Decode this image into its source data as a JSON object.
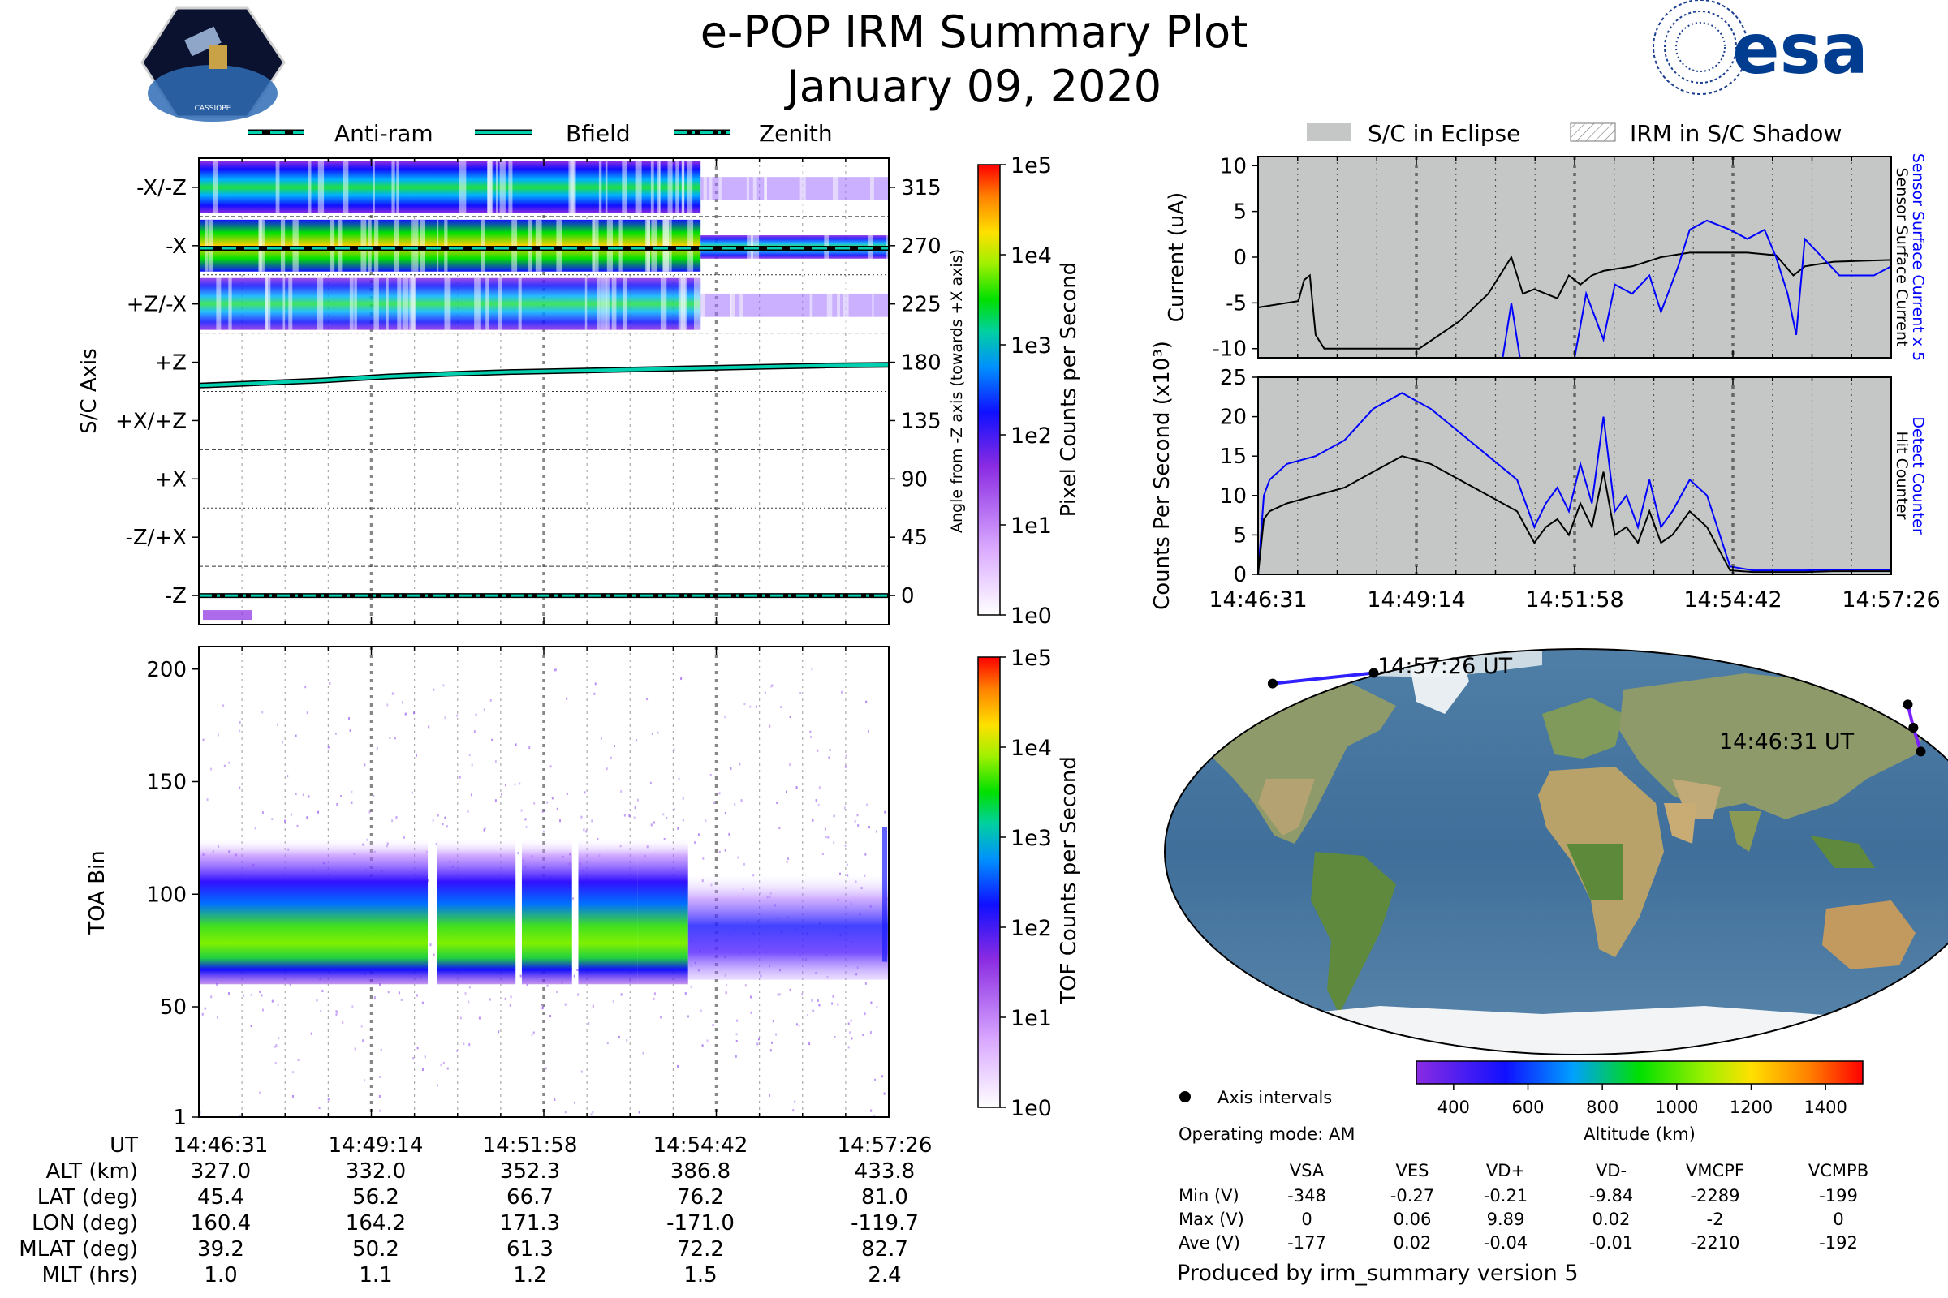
{
  "header": {
    "title": "e-POP IRM Summary Plot",
    "date": "January 09, 2020",
    "left_logo_text": "CASSIOPE",
    "right_logo_text": "esa"
  },
  "legends": {
    "left": [
      "Anti-ram",
      "Bfield",
      "Zenith"
    ],
    "right": [
      "S/C in Eclipse",
      "IRM in S/C Shadow"
    ]
  },
  "time_ticks": [
    "14:46:31",
    "14:49:14",
    "14:51:58",
    "14:54:42",
    "14:57:26"
  ],
  "chart_data": [
    {
      "id": "angle_spectrogram",
      "type": "heatmap",
      "ylabel": "S/C Axis",
      "y_categories": [
        "-X/-Z",
        "-X",
        "+Z/-X",
        "+Z",
        "+X/+Z",
        "+X",
        "-Z/+X",
        "-Z"
      ],
      "y2label": "Angle from -Z axis (towards +X axis)",
      "y2_ticks": [
        315,
        270,
        225,
        180,
        135,
        90,
        45,
        0
      ],
      "y2lim": [
        -22.5,
        337.5
      ],
      "xlim_min": [
        0,
        11
      ],
      "colorbar": {
        "label": "Pixel Counts per Second",
        "ticks": [
          "1e5",
          "1e4",
          "1e3",
          "1e2",
          "1e1",
          "1e0"
        ]
      },
      "series": [
        {
          "name": "Bfield",
          "x_min": [
            0,
            1,
            2,
            3,
            4,
            5,
            6,
            7,
            8,
            9,
            10,
            11
          ],
          "y_deg": [
            162,
            164,
            166,
            169,
            171,
            172.5,
            173.5,
            174.5,
            175.5,
            176.5,
            177.5,
            178
          ]
        },
        {
          "name": "Anti-ram",
          "y_deg": 268
        },
        {
          "name": "Zenith",
          "y_deg": 0
        }
      ],
      "bands_deg": [
        {
          "center": 315,
          "from_min": 0,
          "to_min": 11,
          "strong_until_min": 8
        },
        {
          "center": 270,
          "from_min": 0,
          "to_min": 11,
          "strong_until_min": 8
        },
        {
          "center": 225,
          "from_min": 0,
          "to_min": 11,
          "strong_until_min": 8
        }
      ]
    },
    {
      "id": "toa_spectrogram",
      "type": "heatmap",
      "ylabel": "TOA Bin",
      "y_ticks": [
        1,
        50,
        100,
        150,
        200
      ],
      "ylim": [
        1,
        210
      ],
      "xlim_min": [
        0,
        11
      ],
      "colorbar": {
        "label": "TOF Counts per Second",
        "ticks": [
          "1e5",
          "1e4",
          "1e3",
          "1e2",
          "1e1",
          "1e0"
        ]
      },
      "core": {
        "bin_center": 80,
        "bin_halfwidth": 10,
        "active_until_min": 7.8
      },
      "envelope": {
        "low_bin": 60,
        "high_bin": 125
      }
    },
    {
      "id": "current_plot",
      "type": "line",
      "ylabel": "Current (uA)",
      "ylim": [
        -11,
        11
      ],
      "y_ticks": [
        10,
        5,
        0,
        -5,
        -10
      ],
      "xlim_min": [
        0,
        11
      ],
      "right_labels": [
        "Sensor Surface Current x 5",
        "Sensor Surface Current"
      ],
      "series": [
        {
          "name": "Sensor Surface Current",
          "color": "#000000",
          "x_min": [
            0,
            0.7,
            0.8,
            0.9,
            1.0,
            1.15,
            1.3,
            2.8,
            3.5,
            4.0,
            4.4,
            4.6,
            4.8,
            5.0,
            5.2,
            5.4,
            5.6,
            5.8,
            6.0,
            6.5,
            7.0,
            7.5,
            8.0,
            8.5,
            9.0,
            9.3,
            9.5,
            10.0,
            11.0
          ],
          "y": [
            -5.5,
            -4.8,
            -2.5,
            -2,
            -8.5,
            -10,
            -10,
            -10,
            -7,
            -4,
            0,
            -4,
            -3.5,
            -4,
            -4.5,
            -2,
            -3,
            -2,
            -1.5,
            -1,
            0,
            0.5,
            0.5,
            0.5,
            0.2,
            -2,
            -1,
            -0.5,
            -0.3
          ]
        },
        {
          "name": "Sensor Surface Current x 5",
          "color": "#0000ff",
          "x_min": [
            4.25,
            4.4,
            4.55,
            5.5,
            5.7,
            6.0,
            6.2,
            6.5,
            6.8,
            7.0,
            7.3,
            7.5,
            7.8,
            8.2,
            8.5,
            8.8,
            9.0,
            9.2,
            9.35,
            9.5,
            9.8,
            10.1,
            10.4,
            10.7,
            11.0
          ],
          "y": [
            -11,
            -5,
            -11,
            -11,
            -4,
            -9,
            -3,
            -4,
            -2,
            -6,
            -1,
            3,
            4,
            3,
            2,
            3,
            0,
            -4,
            -8.5,
            2,
            0,
            -2,
            -2,
            -2,
            -1
          ]
        }
      ]
    },
    {
      "id": "counts_plot",
      "type": "line",
      "ylabel": "Counts Per Second (x10³)",
      "ylim": [
        0,
        25
      ],
      "y_ticks": [
        0,
        5,
        10,
        15,
        20,
        25
      ],
      "xlim_min": [
        0,
        11
      ],
      "right_labels": [
        "Detect Counter",
        "Hit Counter"
      ],
      "series": [
        {
          "name": "Detect Counter",
          "color": "#0000ff",
          "x_min": [
            0,
            0.1,
            0.2,
            0.5,
            1.0,
            1.5,
            2.0,
            2.5,
            3.0,
            3.5,
            4.0,
            4.5,
            4.8,
            5.0,
            5.2,
            5.4,
            5.6,
            5.8,
            6.0,
            6.2,
            6.4,
            6.6,
            6.8,
            7.0,
            7.2,
            7.5,
            7.8,
            8.2,
            8.6,
            9.0,
            9.5,
            10.0,
            10.5,
            11.0
          ],
          "y": [
            0,
            10,
            12,
            14,
            15,
            17,
            21,
            23,
            21,
            18,
            15,
            12,
            6,
            9,
            11,
            8,
            14,
            9,
            20,
            8,
            10,
            6,
            12,
            6,
            8,
            12,
            10,
            1,
            0.5,
            0.5,
            0.5,
            0.6,
            0.6,
            0.6
          ]
        },
        {
          "name": "Hit Counter",
          "color": "#000000",
          "x_min": [
            0,
            0.1,
            0.2,
            0.5,
            1.0,
            1.5,
            2.0,
            2.5,
            3.0,
            3.5,
            4.0,
            4.5,
            4.8,
            5.0,
            5.2,
            5.4,
            5.6,
            5.8,
            6.0,
            6.2,
            6.4,
            6.6,
            6.8,
            7.0,
            7.2,
            7.5,
            7.8,
            8.2,
            8.6,
            9.0,
            9.5,
            10.0,
            10.5,
            11.0
          ],
          "y": [
            0,
            7,
            8,
            9,
            10,
            11,
            13,
            15,
            14,
            12,
            10,
            8,
            4,
            6,
            7,
            5,
            9,
            6,
            13,
            5,
            6,
            4,
            8,
            4,
            5,
            8,
            6,
            0.5,
            0.3,
            0.3,
            0.3,
            0.4,
            0.4,
            0.4
          ]
        }
      ]
    }
  ],
  "map": {
    "labels": [
      "14:57:26 UT",
      "14:46:31 UT"
    ],
    "legend_label": "Axis intervals",
    "colorbar_label": "Altitude (km)",
    "colorbar_ticks": [
      "400",
      "600",
      "800",
      "1000",
      "1200",
      "1400"
    ],
    "track_lonlat": [
      [
        160.4,
        45.4
      ],
      [
        164.2,
        56.2
      ],
      [
        171.3,
        66.7
      ],
      [
        -171.0,
        76.2
      ],
      [
        -119.7,
        81.0
      ]
    ]
  },
  "info": {
    "operating_mode": "Operating mode: AM",
    "footer": "Produced by irm_summary version 5"
  },
  "ephemeris": {
    "labels": [
      "UT",
      "ALT (km)",
      "LAT (deg)",
      "LON (deg)",
      "MLAT (deg)",
      "MLT (hrs)"
    ],
    "rows": [
      [
        "14:46:31",
        "14:49:14",
        "14:51:58",
        "14:54:42",
        "14:57:26"
      ],
      [
        "327.0",
        "332.0",
        "352.3",
        "386.8",
        "433.8"
      ],
      [
        "45.4",
        "56.2",
        "66.7",
        "76.2",
        "81.0"
      ],
      [
        "160.4",
        "164.2",
        "171.3",
        "-171.0",
        "-119.7"
      ],
      [
        "39.2",
        "50.2",
        "61.3",
        "72.2",
        "82.7"
      ],
      [
        "1.0",
        "1.1",
        "1.2",
        "1.5",
        "2.4"
      ]
    ]
  },
  "voltage_table": {
    "headers": [
      "VSA",
      "VES",
      "VD+",
      "VD-",
      "VMCPF",
      "VCMPB"
    ],
    "row_labels": [
      "Min (V)",
      "Max (V)",
      "Ave (V)"
    ],
    "rows": [
      [
        "-348",
        "-0.27",
        "-0.21",
        "-9.84",
        "-2289",
        "-199"
      ],
      [
        "0",
        "0.06",
        "9.89",
        "0.02",
        "-2",
        "0"
      ],
      [
        "-177",
        "0.02",
        "-0.04",
        "-0.01",
        "-2210",
        "-192"
      ]
    ]
  }
}
